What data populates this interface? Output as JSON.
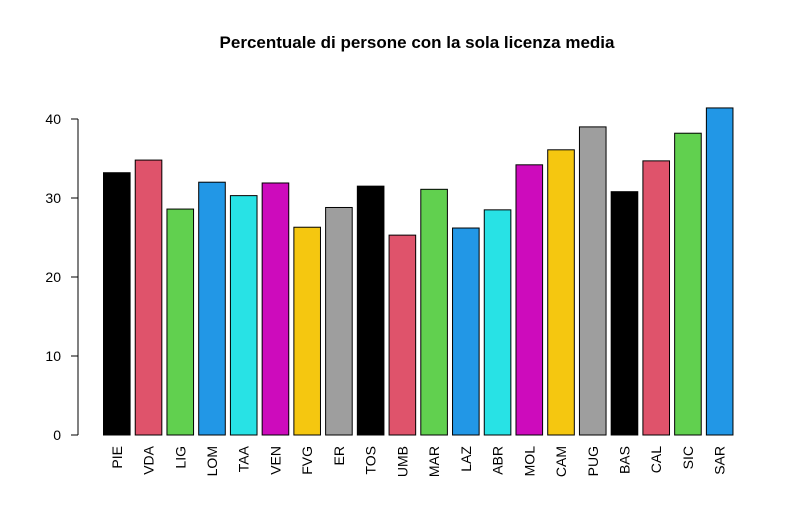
{
  "chart_data": {
    "type": "bar",
    "title": "Percentuale di persone con la sola licenza media",
    "xlabel": "",
    "ylabel": "",
    "ylim": [
      0,
      42
    ],
    "yticks": [
      0,
      10,
      20,
      30,
      40
    ],
    "grid": false,
    "legend": "none",
    "categories": [
      "PIE",
      "VDA",
      "LIG",
      "LOM",
      "TAA",
      "VEN",
      "FVG",
      "ER",
      "TOS",
      "UMB",
      "MAR",
      "LAZ",
      "ABR",
      "MOL",
      "CAM",
      "PUG",
      "BAS",
      "CAL",
      "SIC",
      "SAR"
    ],
    "values": [
      33.2,
      34.8,
      28.6,
      32.0,
      30.3,
      31.9,
      26.3,
      28.8,
      31.5,
      25.3,
      31.1,
      26.2,
      28.5,
      34.2,
      36.1,
      39.0,
      30.8,
      34.7,
      38.2,
      41.4
    ],
    "colors": [
      "#000000",
      "#DF536B",
      "#61D04F",
      "#2297E6",
      "#28E2E5",
      "#CD0BBC",
      "#F5C710",
      "#9E9E9E",
      "#000000",
      "#DF536B",
      "#61D04F",
      "#2297E6",
      "#28E2E5",
      "#CD0BBC",
      "#F5C710",
      "#9E9E9E",
      "#000000",
      "#DF536B",
      "#61D04F",
      "#2297E6"
    ]
  }
}
